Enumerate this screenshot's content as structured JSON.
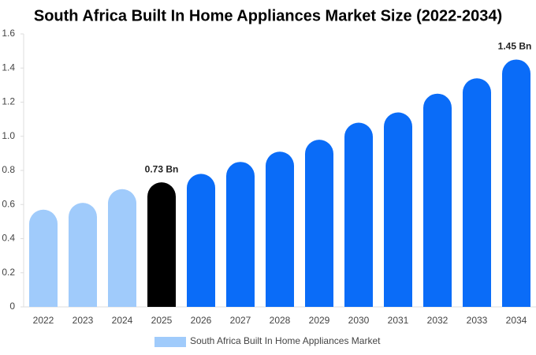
{
  "chart_data": {
    "type": "bar",
    "title": "South Africa Built In Home Appliances Market Size (2022-2034)",
    "categories": [
      "2022",
      "2023",
      "2024",
      "2025",
      "2026",
      "2027",
      "2028",
      "2029",
      "2030",
      "2031",
      "2032",
      "2033",
      "2034"
    ],
    "series": [
      {
        "name": "South Africa Built In Home Appliances Market",
        "color": "#a0cbfb",
        "values": [
          0.57,
          0.61,
          0.69,
          0.73,
          0.78,
          0.85,
          0.91,
          0.98,
          1.08,
          1.14,
          1.25,
          1.34,
          1.45
        ],
        "colors": [
          "#a0cbfb",
          "#a0cbfb",
          "#a0cbfb",
          "#000000",
          "#0a6cf8",
          "#0a6cf8",
          "#0a6cf8",
          "#0a6cf8",
          "#0a6cf8",
          "#0a6cf8",
          "#0a6cf8",
          "#0a6cf8",
          "#0a6cf8"
        ],
        "value_labels": [
          null,
          null,
          null,
          "0.73 Bn",
          null,
          null,
          null,
          null,
          null,
          null,
          null,
          null,
          "1.45 Bn"
        ]
      }
    ],
    "ylim": [
      0,
      1.6
    ],
    "yticks": [
      0,
      {
        "value": 0.2,
        "label": "0.2"
      },
      {
        "value": 0.4,
        "label": "0.4"
      },
      {
        "value": 0.6,
        "label": "0.6"
      },
      {
        "value": 0.8,
        "label": "0.8"
      },
      {
        "value": 1.0,
        "label": "1.0"
      },
      {
        "value": 1.2,
        "label": "1.2"
      },
      {
        "value": 1.4,
        "label": "1.4"
      },
      {
        "value": 1.6,
        "label": "1.6"
      }
    ],
    "grid": false,
    "legend": "bottom"
  }
}
